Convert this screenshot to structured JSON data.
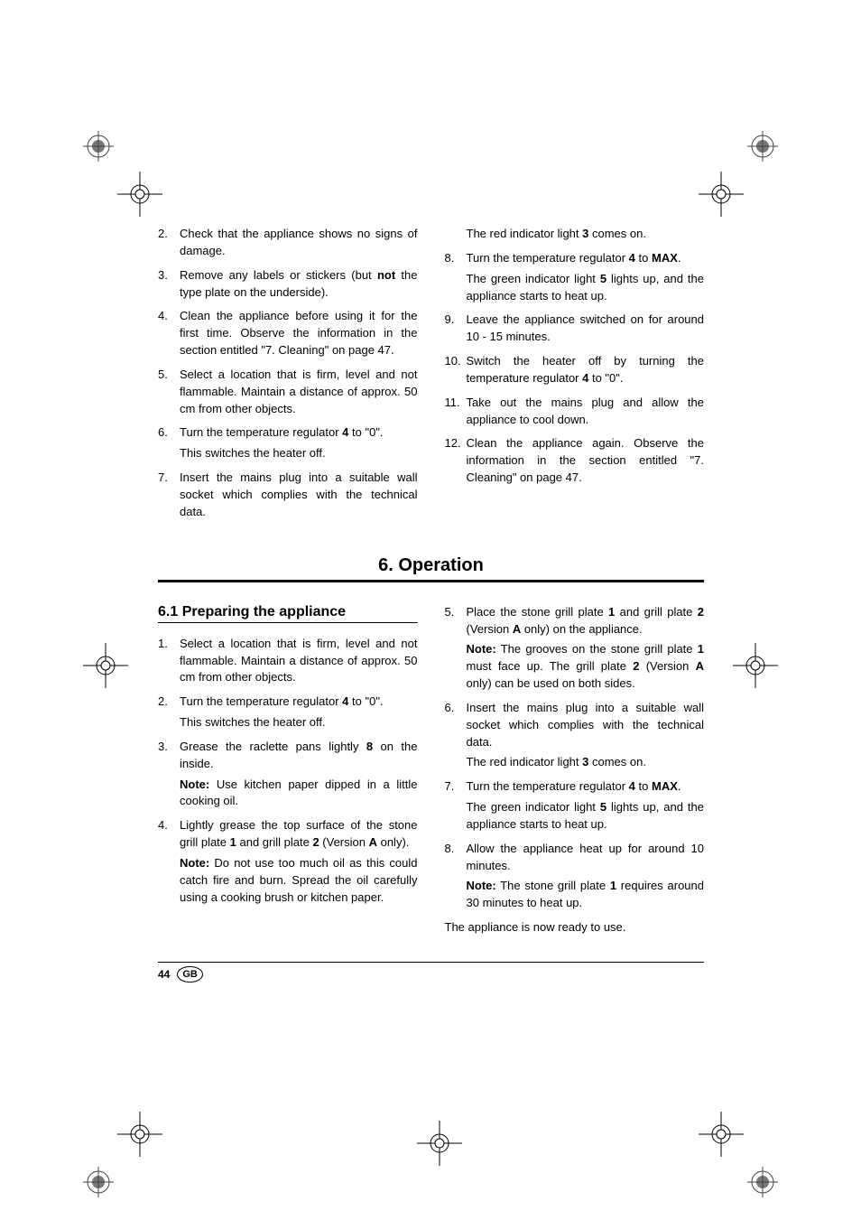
{
  "upper": {
    "left": [
      {
        "n": "2.",
        "html": "Check that the appliance shows no signs of damage."
      },
      {
        "n": "3.",
        "html": "Remove any labels or stickers (but <b>not</b> the type plate on the underside)."
      },
      {
        "n": "4.",
        "html": "Clean the appliance before using it for the first time. Observe the information in the section entitled \"7. Cleaning\" on page 47."
      },
      {
        "n": "5.",
        "html": "Select a location that is firm, level and not flammable. Maintain a distance of approx. 50 cm from other objects."
      },
      {
        "n": "6.",
        "html": "Turn the temperature regulator <b>4</b> to \"0\".",
        "follow": "This switches the heater off."
      },
      {
        "n": "7.",
        "html": "Insert the mains plug into a suitable wall socket which complies with the technical data."
      }
    ],
    "right_lead": "The red indicator light <b>3</b> comes on.",
    "right": [
      {
        "n": "8.",
        "html": "Turn the temperature regulator <b>4</b> to <b>MAX</b>.",
        "follow": "The green indicator light <b>5</b> lights up, and the appliance starts to heat up."
      },
      {
        "n": "9.",
        "html": "Leave the appliance switched on for around 10 - 15 minutes."
      },
      {
        "n": "10.",
        "html": "Switch the heater off by turning the temperature regulator <b>4</b> to \"0\"."
      },
      {
        "n": "11.",
        "html": "Take out the mains plug and allow the appliance to cool down."
      },
      {
        "n": "12.",
        "html": "Clean the appliance again. Observe the information in the section entitled \"7. Cleaning\" on page 47."
      }
    ]
  },
  "section_heading": "6. Operation",
  "subsection_heading": "6.1 Preparing the appliance",
  "lower": {
    "left": [
      {
        "n": "1.",
        "html": "Select a location that is firm, level and not flammable. Maintain a distance of approx. 50 cm from other objects."
      },
      {
        "n": "2.",
        "html": "Turn the temperature regulator <b>4</b> to \"0\".",
        "follow": "This switches the heater off."
      },
      {
        "n": "3.",
        "html": "Grease the raclette pans lightly <b>8</b> on the inside.",
        "follow": "<b>Note:</b> Use kitchen paper dipped in a little cooking oil."
      },
      {
        "n": "4.",
        "html": "Lightly grease the top surface of the stone grill plate <b>1</b> and grill plate <b>2</b> (Version <b>A</b> only).",
        "follow": "<b>Note:</b> Do not use too much oil as this could catch fire and burn. Spread the oil carefully using a cooking brush or kitchen paper."
      }
    ],
    "right": [
      {
        "n": "5.",
        "html": "Place the stone grill plate <b>1</b> and grill plate <b>2</b> (Version <b>A</b> only) on the appliance.",
        "follow": "<b>Note:</b> The grooves on the stone grill plate <b>1</b> must face up. The grill plate <b>2</b> (Version <b>A</b> only) can be used on both sides."
      },
      {
        "n": "6.",
        "html": "Insert the mains plug into a suitable wall socket which complies with the technical data.",
        "follow": "The red indicator light <b>3</b> comes on."
      },
      {
        "n": "7.",
        "html": "Turn the temperature regulator <b>4</b> to <b>MAX</b>.",
        "follow": "The green indicator light <b>5</b> lights up, and the appliance starts to heat up."
      },
      {
        "n": "8.",
        "html": "Allow the appliance heat up for around 10 minutes.",
        "follow": "<b>Note:</b> The stone grill plate <b>1</b> requires around 30 minutes to heat up."
      }
    ],
    "closing": "The appliance is now ready to use."
  },
  "footer": {
    "page": "44",
    "badge": "GB"
  }
}
